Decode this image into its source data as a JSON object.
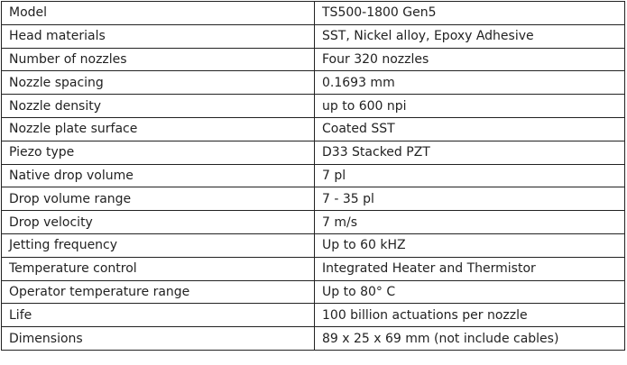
{
  "rows": [
    {
      "label": "Model",
      "value": "TS500-1800 Gen5"
    },
    {
      "label": "Head materials",
      "value": "SST, Nickel alloy, Epoxy Adhesive"
    },
    {
      "label": "Number of nozzles",
      "value": "Four 320 nozzles"
    },
    {
      "label": "Nozzle spacing",
      "value": "0.1693 mm"
    },
    {
      "label": "Nozzle density",
      "value": "up to 600 npi"
    },
    {
      "label": "Nozzle plate surface",
      "value": "Coated SST"
    },
    {
      "label": "Piezo type",
      "value": "D33 Stacked PZT"
    },
    {
      "label": "Native drop volume",
      "value": "7 pl"
    },
    {
      "label": "Drop volume range",
      "value": "7 - 35 pl"
    },
    {
      "label": "Drop velocity",
      "value": "7 m/s"
    },
    {
      "label": "Jetting frequency",
      "value": "Up to 60 kHZ"
    },
    {
      "label": "Temperature control",
      "value": "Integrated Heater and Thermistor"
    },
    {
      "label": "Operator temperature range",
      "value": "Up to 80°  C"
    },
    {
      "label": "Life",
      "value": "100 billion actuations per nozzle"
    },
    {
      "label": "Dimensions",
      "value": "89 x 25 x 69 mm (not include cables)"
    }
  ]
}
